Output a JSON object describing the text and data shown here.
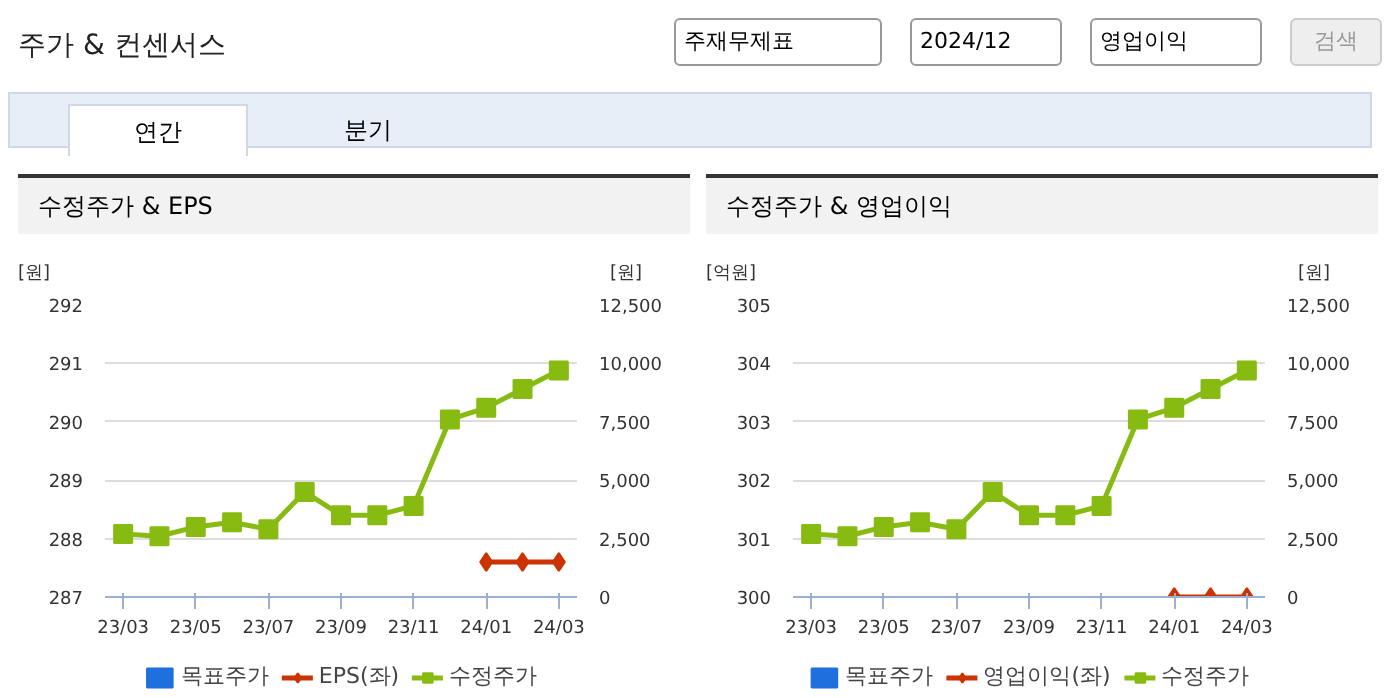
{
  "chart_data": [
    {
      "type": "other",
      "title": "주가 & 컨센서스",
      "annotations": [
        "주재무제표",
        "2024/12",
        "영업이익",
        "검색",
        "연간",
        "분기"
      ]
    },
    {
      "type": "line",
      "title": "수정주가 & EPS",
      "ylabel": "[원]",
      "y2label": "[원]",
      "categories": [
        "23/03",
        null,
        "23/05",
        null,
        "23/07",
        null,
        "23/09",
        null,
        "23/11",
        null,
        "24/01",
        null,
        "24/03"
      ],
      "ylim": [
        287,
        292
      ],
      "yticks": [
        287,
        288,
        289,
        290,
        291,
        292
      ],
      "y2lim": [
        0,
        12500
      ],
      "y2ticks": [
        0,
        {
          "value": 2500,
          "label": "2,500"
        },
        {
          "value": 5000,
          "label": "5,000"
        },
        {
          "value": 7500,
          "label": "7,500"
        },
        {
          "value": 10000,
          "label": "10,000"
        },
        {
          "value": 12500,
          "label": "12,500"
        }
      ],
      "grid": "y",
      "legend": "bottom",
      "series": [
        {
          "name": "목표주가",
          "type": "bar",
          "color": "#1f6fde",
          "values": [
            null,
            null,
            null,
            null,
            null,
            null,
            null,
            null,
            null,
            null,
            null,
            null,
            null
          ]
        },
        {
          "name": "EPS(좌)",
          "type": "line",
          "marker": "diamond",
          "color": "#cc3300",
          "values": [
            null,
            null,
            null,
            null,
            null,
            null,
            null,
            null,
            null,
            null,
            287.6,
            287.6,
            287.6
          ]
        },
        {
          "name": "수정주가",
          "type": "line",
          "marker": "square",
          "axis": "y2",
          "color": "#88bb11",
          "values": [
            2700,
            2600,
            3000,
            3200,
            2900,
            4500,
            3500,
            3500,
            3900,
            7600,
            8100,
            8900,
            9700
          ]
        }
      ]
    },
    {
      "type": "line",
      "title": "수정주가 & 영업이익",
      "ylabel": "[억원]",
      "y2label": "[원]",
      "categories": [
        "23/03",
        null,
        "23/05",
        null,
        "23/07",
        null,
        "23/09",
        null,
        "23/11",
        null,
        "24/01",
        null,
        "24/03"
      ],
      "ylim": [
        300,
        305
      ],
      "yticks": [
        300,
        301,
        302,
        303,
        304,
        305
      ],
      "y2lim": [
        0,
        12500
      ],
      "y2ticks": [
        0,
        {
          "value": 2500,
          "label": "2,500"
        },
        {
          "value": 5000,
          "label": "5,000"
        },
        {
          "value": 7500,
          "label": "7,500"
        },
        {
          "value": 10000,
          "label": "10,000"
        },
        {
          "value": 12500,
          "label": "12,500"
        }
      ],
      "grid": "y",
      "legend": "bottom",
      "series": [
        {
          "name": "목표주가",
          "type": "bar",
          "color": "#1f6fde",
          "values": [
            null,
            null,
            null,
            null,
            null,
            null,
            null,
            null,
            null,
            null,
            null,
            null,
            null
          ]
        },
        {
          "name": "영업이익(좌)",
          "type": "line",
          "marker": "diamond",
          "color": "#cc3300",
          "values": [
            null,
            null,
            null,
            null,
            null,
            null,
            null,
            null,
            null,
            null,
            300,
            300,
            300
          ]
        },
        {
          "name": "수정주가",
          "type": "line",
          "marker": "square",
          "axis": "y2",
          "color": "#88bb11",
          "values": [
            2700,
            2600,
            3000,
            3200,
            2900,
            4500,
            3500,
            3500,
            3900,
            7600,
            8100,
            8900,
            9700
          ]
        }
      ]
    }
  ]
}
